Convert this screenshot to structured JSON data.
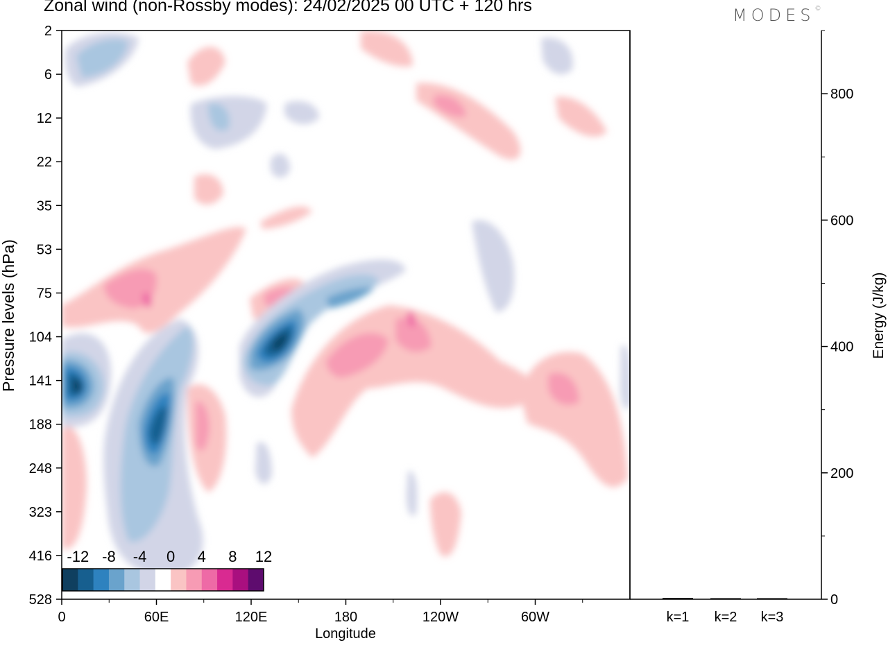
{
  "header": {
    "title": "Zonal wind (non-Rossby modes):  24/02/2025  00 UTC  + 120 hrs",
    "brand": "MODES",
    "brand_mark": "©"
  },
  "chart_data": [
    {
      "type": "heatmap",
      "xlabel": "Longitude",
      "ylabel": "Pressure levels (hPa)",
      "x_ticks": [
        "0",
        "60E",
        "120E",
        "180",
        "120W",
        "60W"
      ],
      "y_ticks": [
        "2",
        "6",
        "12",
        "22",
        "35",
        "53",
        "75",
        "104",
        "141",
        "188",
        "248",
        "323",
        "416",
        "528"
      ],
      "colorbar": {
        "ticks": [
          "-12",
          "-8",
          "-4",
          "0",
          "4",
          "8",
          "12"
        ],
        "levels": [
          -14,
          -12,
          -10,
          -8,
          -6,
          -4,
          -2,
          2,
          4,
          6,
          8,
          10,
          12,
          14
        ],
        "colors": [
          "#0f3f5f",
          "#175f8f",
          "#2e82bf",
          "#6aa3cc",
          "#a9c6e0",
          "#d2d5e7",
          "#ffffff",
          "#fac4c4",
          "#f79bb4",
          "#ee6aa6",
          "#d92a91",
          "#a90f7f",
          "#5e0c6e"
        ]
      },
      "features": [
        {
          "lon": 12,
          "lev": 141,
          "value": -14
        },
        {
          "lon": 57,
          "lev": 188,
          "value": -12
        },
        {
          "lon": 137,
          "lev": 104,
          "value": -14
        },
        {
          "lon": 22,
          "lev": 6,
          "value": -6
        },
        {
          "lon": 195,
          "lev": 75,
          "value": -6
        },
        {
          "lon": 53,
          "lev": 75,
          "value": 8
        },
        {
          "lon": 213,
          "lev": 104,
          "value": 8
        },
        {
          "lon": 330,
          "lev": 141,
          "value": 6
        }
      ]
    },
    {
      "type": "bar",
      "categories": [
        "k=1",
        "k=2",
        "k=3"
      ],
      "values": [
        2,
        1,
        1
      ],
      "ylabel": "Energy (J/kg)",
      "ylim": [
        0,
        900
      ],
      "y_ticks": [
        0,
        200,
        400,
        600,
        800
      ]
    }
  ]
}
